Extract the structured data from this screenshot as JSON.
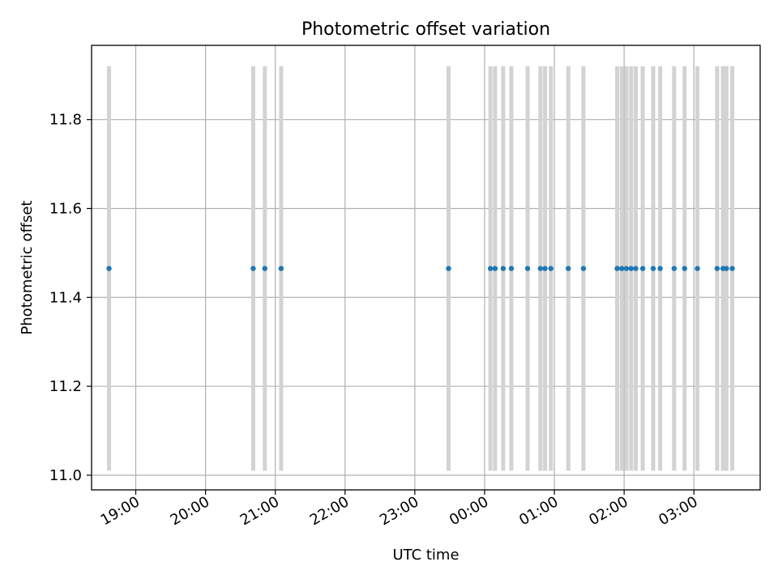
{
  "chart_data": {
    "type": "scatter",
    "title": "Photometric offset variation",
    "xlabel": "UTC time",
    "ylabel": "Photometric offset",
    "grid": true,
    "xlim": [
      "18:22",
      "03:57"
    ],
    "ylim": [
      10.967,
      11.967
    ],
    "x_ticks": [
      "19:00",
      "20:00",
      "21:00",
      "22:00",
      "23:00",
      "00:00",
      "01:00",
      "02:00",
      "03:00"
    ],
    "y_ticks": [
      "11.0",
      "11.2",
      "11.4",
      "11.6",
      "11.8"
    ],
    "error_bar": {
      "low": 11.01,
      "high": 11.92
    },
    "x": [
      "18:37",
      "20:41",
      "20:51",
      "21:05",
      "23:29",
      "00:05",
      "00:09",
      "00:16",
      "00:23",
      "00:37",
      "00:48",
      "00:52",
      "00:57",
      "01:12",
      "01:25",
      "01:54",
      "01:58",
      "02:02",
      "02:06",
      "02:10",
      "02:16",
      "02:25",
      "02:31",
      "02:43",
      "02:52",
      "03:03",
      "03:20",
      "03:25",
      "03:28",
      "03:33"
    ],
    "y": [
      11.465,
      11.465,
      11.465,
      11.465,
      11.465,
      11.465,
      11.465,
      11.465,
      11.465,
      11.465,
      11.465,
      11.465,
      11.465,
      11.465,
      11.465,
      11.465,
      11.465,
      11.465,
      11.465,
      11.465,
      11.465,
      11.465,
      11.465,
      11.465,
      11.465,
      11.465,
      11.465,
      11.465,
      11.465,
      11.465
    ],
    "colors": {
      "points": "#1f77b4",
      "error_bars": "#d3d3d3",
      "grid": "#b0b0b0"
    }
  }
}
